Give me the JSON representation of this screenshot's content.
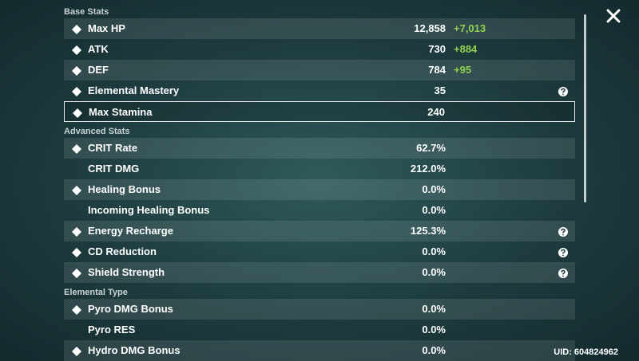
{
  "sections": [
    {
      "title": "Base Stats",
      "rows": [
        {
          "name": "Max HP",
          "value": "12,858",
          "bonus": "+7,013",
          "icon": true
        },
        {
          "name": "ATK",
          "value": "730",
          "bonus": "+884",
          "icon": true
        },
        {
          "name": "DEF",
          "value": "784",
          "bonus": "+95",
          "icon": true
        },
        {
          "name": "Elemental Mastery",
          "value": "35",
          "icon": true,
          "help": true
        },
        {
          "name": "Max Stamina",
          "value": "240",
          "icon": true,
          "selected": true
        }
      ]
    },
    {
      "title": "Advanced Stats",
      "rows": [
        {
          "name": "CRIT Rate",
          "value": "62.7%",
          "icon": true
        },
        {
          "name": "CRIT DMG",
          "value": "212.0%"
        },
        {
          "name": "Healing Bonus",
          "value": "0.0%",
          "icon": true
        },
        {
          "name": "Incoming Healing Bonus",
          "value": "0.0%"
        },
        {
          "name": "Energy Recharge",
          "value": "125.3%",
          "icon": true,
          "help": true
        },
        {
          "name": "CD Reduction",
          "value": "0.0%",
          "icon": true,
          "help": true
        },
        {
          "name": "Shield Strength",
          "value": "0.0%",
          "icon": true,
          "help": true
        }
      ]
    },
    {
      "title": "Elemental Type",
      "rows": [
        {
          "name": "Pyro DMG Bonus",
          "value": "0.0%",
          "icon": true
        },
        {
          "name": "Pyro RES",
          "value": "0.0%"
        },
        {
          "name": "Hydro DMG Bonus",
          "value": "0.0%",
          "icon": true
        }
      ]
    }
  ],
  "uid": "UID: 604824962"
}
